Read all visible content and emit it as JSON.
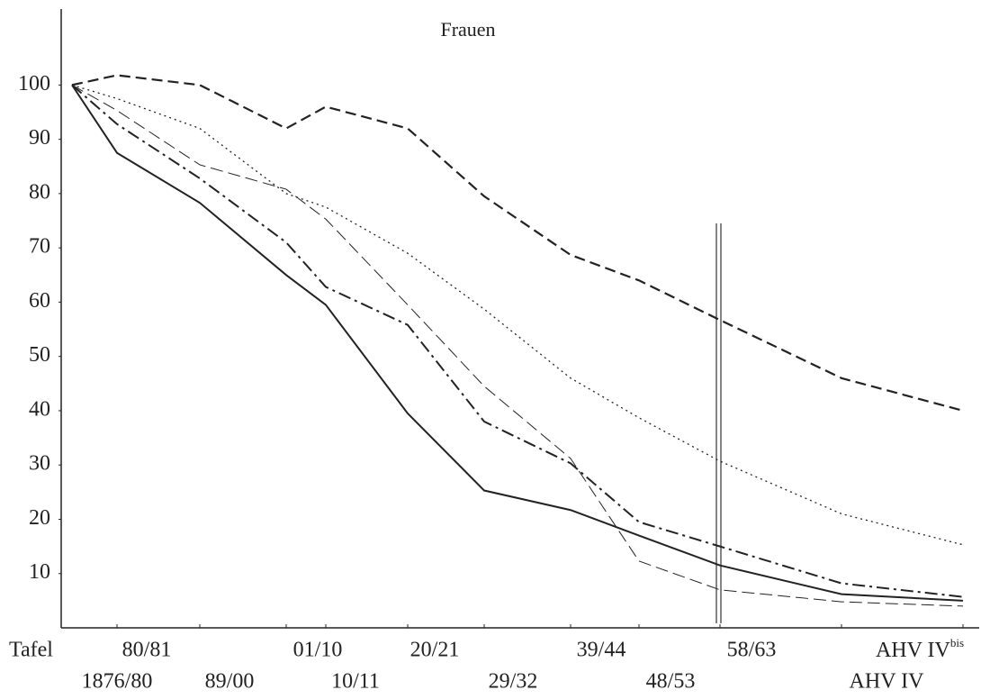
{
  "chart_data": {
    "type": "line",
    "title": "Frauen",
    "xlabel": "Tafel",
    "categories": [
      "1876/80",
      "80/81",
      "89/00",
      "01/10",
      "10/11",
      "20/21",
      "29/32",
      "39/44",
      "48/53",
      "58/63",
      "AHV IV",
      {
        "label": "AHV IV",
        "sup": "bis"
      }
    ],
    "series": [
      {
        "color": "#222222",
        "values": [
          100,
          101.8,
          100,
          92,
          96,
          92,
          79.5,
          68.7,
          64,
          56.7,
          46,
          40
        ]
      },
      {
        "color": "#222222",
        "values": [
          100,
          97.5,
          92,
          80,
          77.5,
          69,
          58.7,
          46,
          38.7,
          30.7,
          21,
          15.3
        ]
      },
      {
        "color": "#222222",
        "values": [
          100,
          87.5,
          78.3,
          65,
          59.5,
          39.5,
          25.3,
          21.7,
          17,
          11.5,
          6.2,
          5
        ]
      },
      {
        "color": "#222222",
        "values": [
          100,
          92.8,
          82.8,
          71,
          62.8,
          55.8,
          38,
          30.3,
          19.5,
          15,
          8.2,
          5.7
        ]
      },
      {
        "color": "#222222",
        "values": [
          100,
          95.3,
          85.3,
          80.8,
          75.3,
          59.5,
          44.5,
          31.2,
          12.3,
          7,
          4.8,
          4
        ]
      }
    ],
    "ylim": [
      0,
      114
    ],
    "yticks": [
      10,
      20,
      30,
      40,
      50,
      60,
      70,
      80,
      90,
      100
    ]
  }
}
